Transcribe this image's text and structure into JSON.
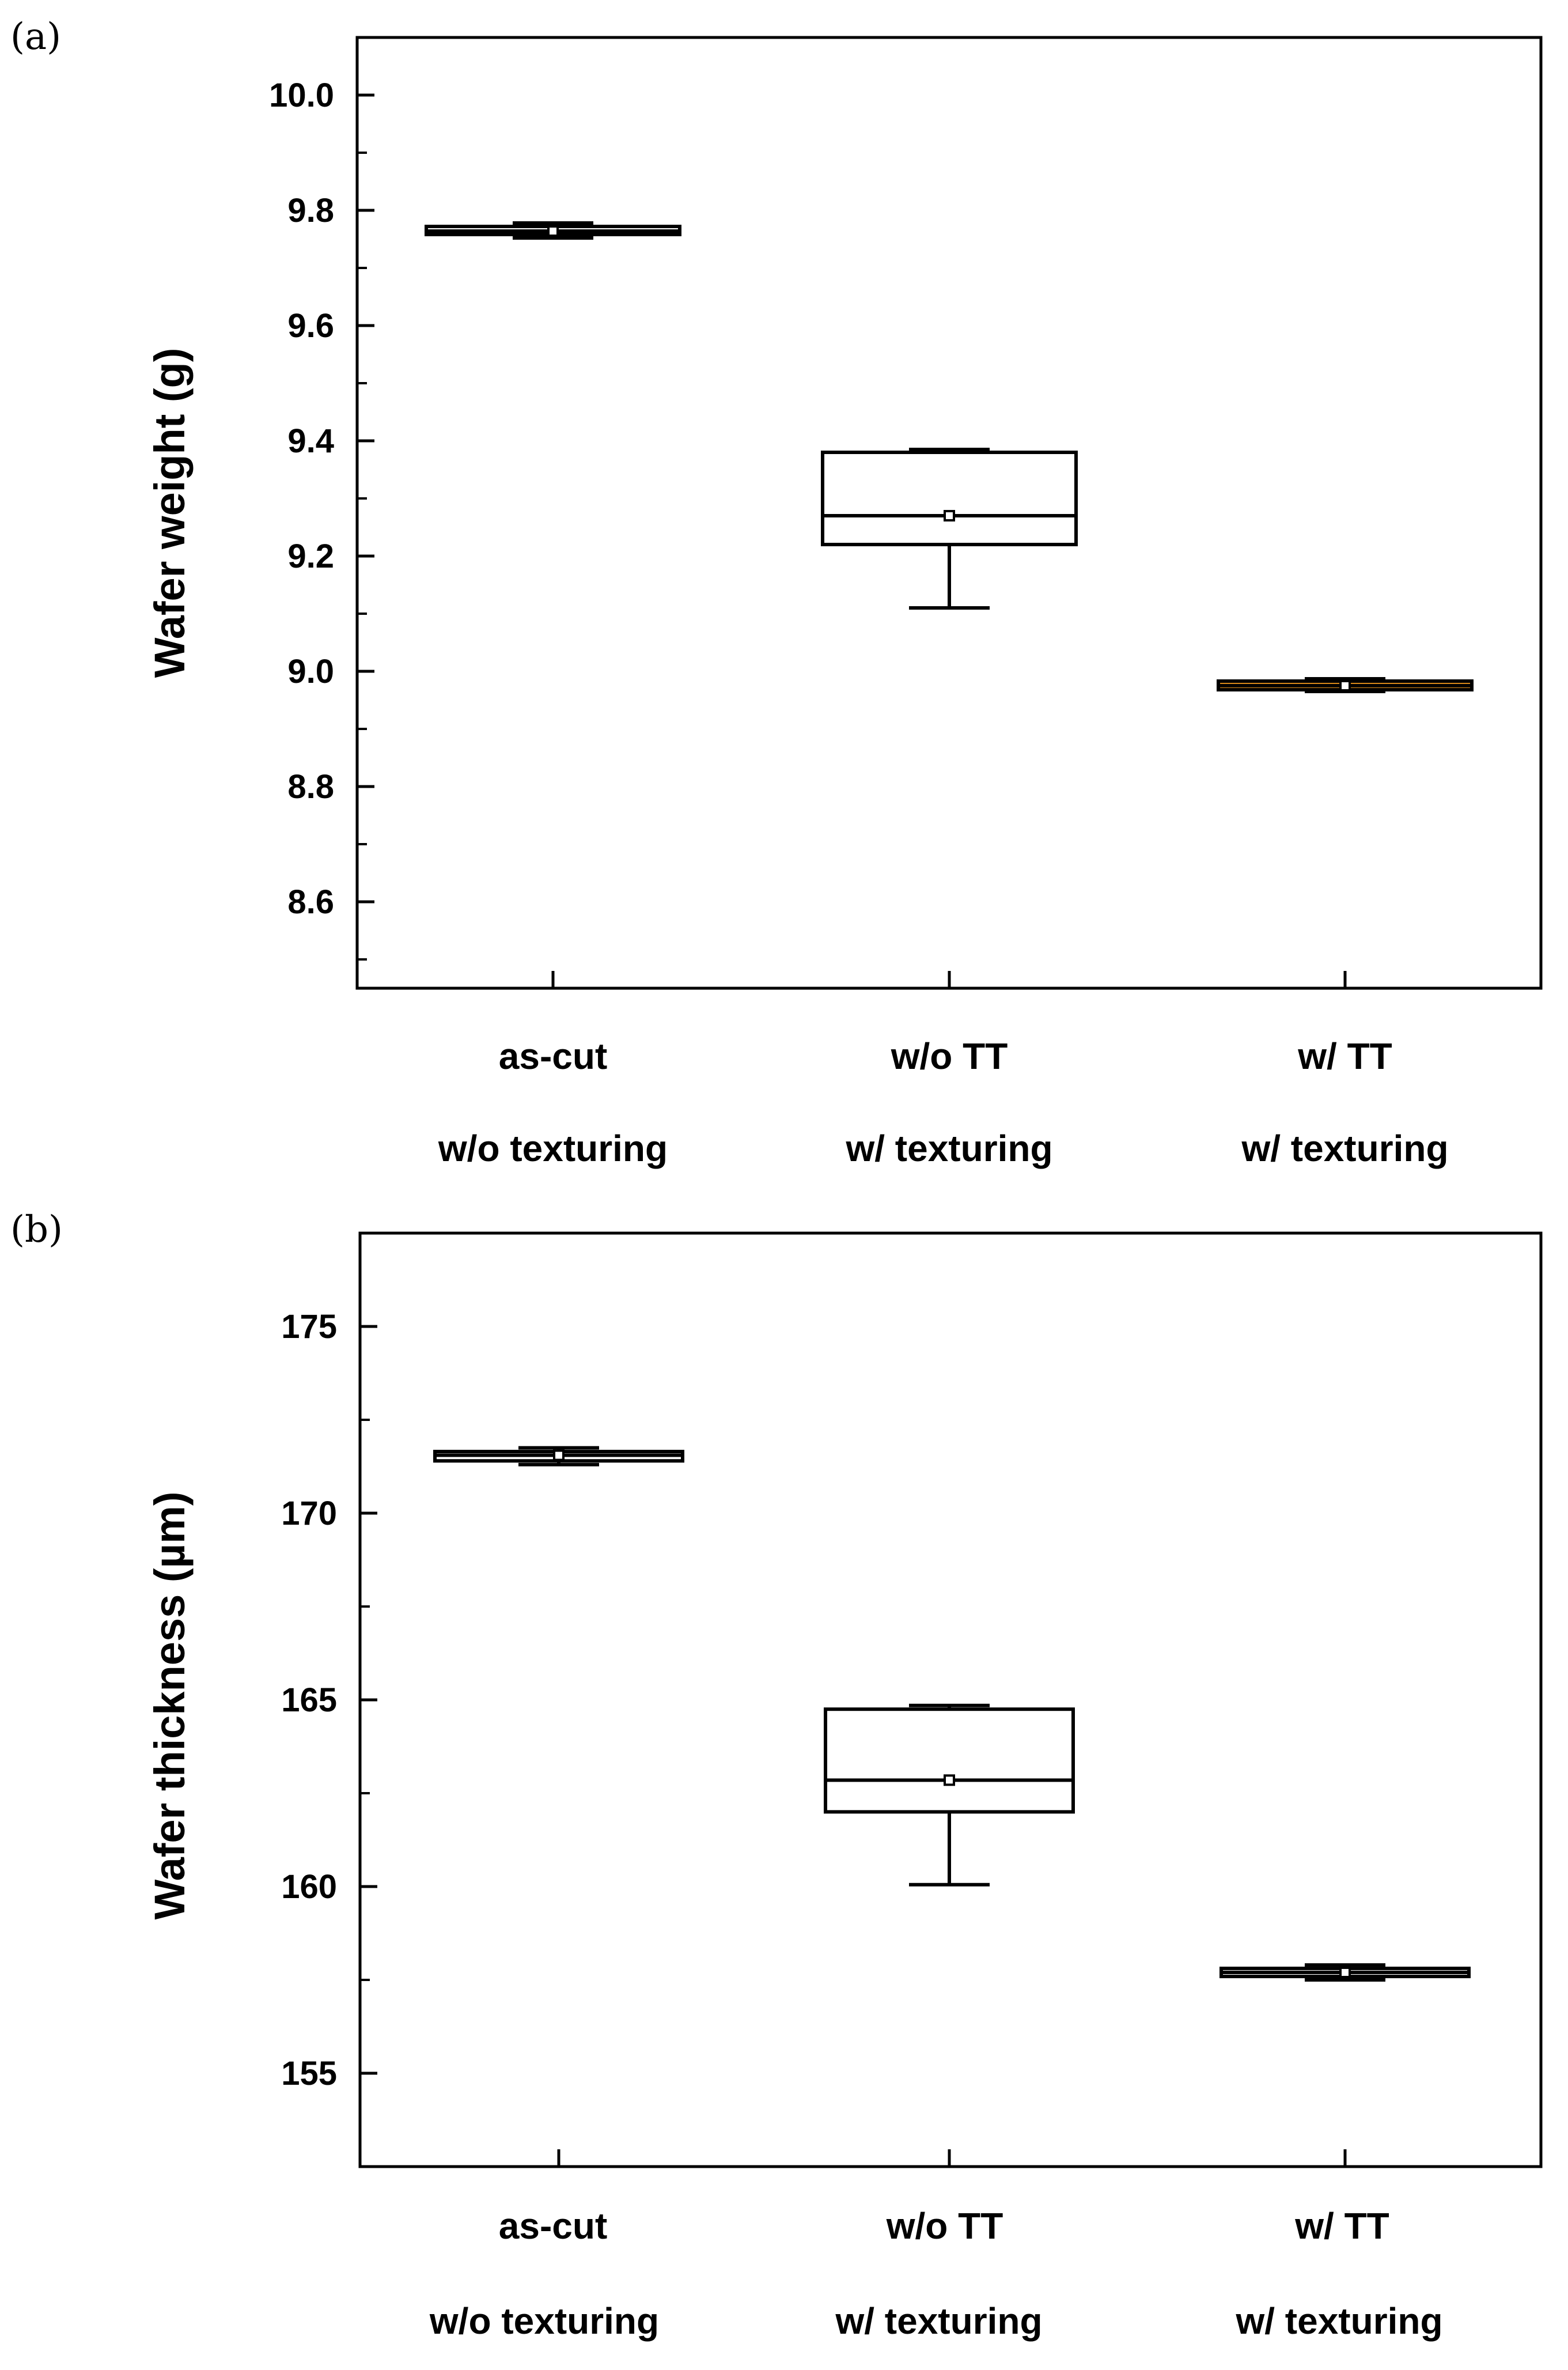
{
  "chart_data": [
    {
      "panel_label": "(a)",
      "type": "box",
      "ylabel": "Wafer weight (g)",
      "ylim": [
        8.45,
        10.1
      ],
      "yticks": [
        8.6,
        8.8,
        9.0,
        9.2,
        9.4,
        9.6,
        9.8,
        10.0
      ],
      "ytick_labels": [
        "8.6",
        "8.8",
        "9.0",
        "9.2",
        "9.4",
        "9.6",
        "9.8",
        "10.0"
      ],
      "categories": [
        {
          "line1": "as-cut",
          "line2": "w/o texturing"
        },
        {
          "line1": "w/o TT",
          "line2": "w/  texturing"
        },
        {
          "line1": "w/  TT",
          "line2": "w/  texturing"
        }
      ],
      "boxes": [
        {
          "min": 9.752,
          "q1": 9.758,
          "median": 9.764,
          "q3": 9.772,
          "max": 9.778,
          "mean": 9.764,
          "fill": "#ffffff"
        },
        {
          "min": 9.11,
          "q1": 9.22,
          "median": 9.27,
          "q3": 9.38,
          "max": 9.385,
          "mean": 9.27,
          "fill": "#ffffff"
        },
        {
          "min": 8.965,
          "q1": 8.968,
          "median": 8.975,
          "q3": 8.983,
          "max": 8.987,
          "mean": 8.975,
          "fill": "#d98a1a"
        }
      ]
    },
    {
      "panel_label": "(b)",
      "type": "box",
      "ylabel": "Wafer thickness (µm)",
      "ylim": [
        152.5,
        177.5
      ],
      "yticks": [
        155,
        160,
        165,
        170,
        175
      ],
      "ytick_labels": [
        "155",
        "160",
        "165",
        "170",
        "175"
      ],
      "categories": [
        {
          "line1": "as-cut",
          "line2": "w/o texturing"
        },
        {
          "line1": "w/o TT",
          "line2": "w/  texturing"
        },
        {
          "line1": "w/  TT",
          "line2": "w/  texturing"
        }
      ],
      "boxes": [
        {
          "min": 171.3,
          "q1": 171.4,
          "median": 171.55,
          "q3": 171.65,
          "max": 171.75,
          "mean": 171.55,
          "fill": "#ffffff"
        },
        {
          "min": 160.05,
          "q1": 162.0,
          "median": 162.85,
          "q3": 164.75,
          "max": 164.85,
          "mean": 162.85,
          "fill": "#ffffff"
        },
        {
          "min": 157.5,
          "q1": 157.6,
          "median": 157.7,
          "q3": 157.8,
          "max": 157.9,
          "mean": 157.7,
          "fill": "#ffffff"
        }
      ]
    }
  ]
}
